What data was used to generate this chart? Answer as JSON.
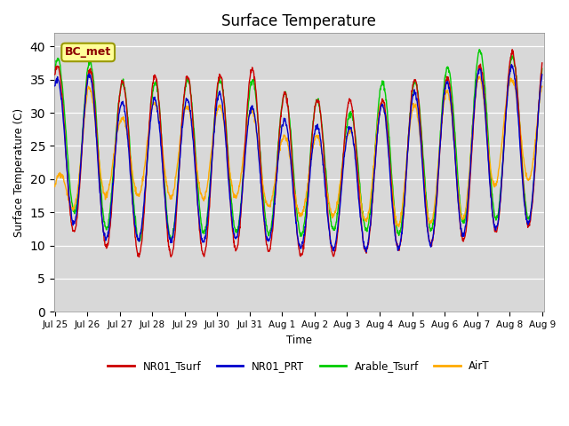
{
  "title": "Surface Temperature",
  "ylabel": "Surface Temperature (C)",
  "xlabel": "Time",
  "annotation": "BC_met",
  "ylim": [
    0,
    42
  ],
  "yticks": [
    0,
    5,
    10,
    15,
    20,
    25,
    30,
    35,
    40
  ],
  "legend": [
    "NR01_Tsurf",
    "NR01_PRT",
    "Arable_Tsurf",
    "AirT"
  ],
  "colors": {
    "NR01_Tsurf": "#cc0000",
    "NR01_PRT": "#0000cc",
    "Arable_Tsurf": "#00cc00",
    "AirT": "#ffaa00"
  },
  "bg_color": "#e0e0e0",
  "plot_bg_color": "#d8d8d8",
  "daily_peaks_red": [
    37,
    36.5,
    34.5,
    35.5,
    35.5,
    35.5,
    37,
    33,
    32,
    32,
    31.5,
    35,
    35,
    37,
    39,
    39,
    39
  ],
  "daily_troughs_red": [
    13,
    11.5,
    8.5,
    8.5,
    8.5,
    8.5,
    10,
    8.5,
    8.5,
    8.5,
    9.5,
    9.5,
    10.5,
    11,
    13,
    13,
    13
  ],
  "daily_peaks_blue": [
    35,
    36,
    31.5,
    32,
    32,
    33,
    31,
    29,
    28,
    27.5,
    31,
    33,
    34.5,
    36.5,
    37,
    37,
    37
  ],
  "daily_troughs_blue": [
    16,
    11.5,
    10.5,
    11,
    10.5,
    10.5,
    11.5,
    10,
    9.5,
    9.5,
    9.5,
    9.5,
    10.5,
    12.5,
    12.5,
    14,
    14
  ],
  "daily_peaks_green": [
    38,
    38,
    34.5,
    34.5,
    35,
    35,
    35,
    33,
    32,
    29.5,
    34.5,
    34.5,
    36.5,
    39.5,
    38.5,
    38.5,
    38.5
  ],
  "daily_troughs_green": [
    19,
    12.5,
    12.5,
    9.5,
    12,
    12,
    12,
    11.5,
    11.5,
    13,
    12,
    11.5,
    13,
    14,
    14,
    14,
    14
  ],
  "daily_peaks_orange": [
    19,
    34,
    29,
    31.5,
    31,
    31,
    30.5,
    26.5,
    26.5,
    27,
    31.5,
    31,
    33,
    35.5,
    35,
    35,
    35
  ],
  "daily_troughs_orange": [
    13,
    17.5,
    17.5,
    17.5,
    17,
    17,
    17.5,
    14.5,
    14.5,
    14.5,
    13,
    13,
    13.5,
    14.5,
    22.5,
    18,
    18
  ],
  "n_points": 1440,
  "peak_hour": 0.583,
  "trough_hour": 0.25
}
